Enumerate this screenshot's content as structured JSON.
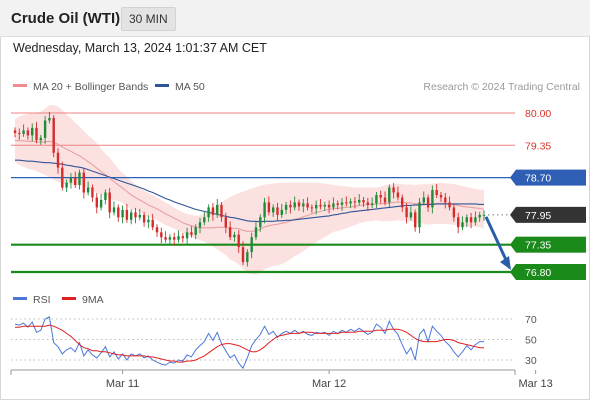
{
  "header": {
    "title": "Crude Oil (WTI)",
    "timeframe": "30 MIN"
  },
  "datetime": "Wednesday, March 13, 2024 1:01:37 AM CET",
  "credit": "Research © 2024 Trading Central",
  "colors": {
    "support": "#1a8a1a",
    "resistance": "#f08080",
    "pivot": "#2f5fb5",
    "current": "#333333",
    "rsi": "#4a78d8",
    "rsi_ma": "#e02020",
    "arrow": "#2a5fa8"
  },
  "chart_data": [
    {
      "type": "candlestick",
      "ylim": [
        76.6,
        80.35
      ],
      "legend": [
        {
          "label": "MA 20 + Bollinger Bands",
          "color": "#f08c8c"
        },
        {
          "label": "MA 50",
          "color": "#2f5597"
        }
      ],
      "x_ticks": [
        {
          "label": "Mar 11",
          "index": 25
        },
        {
          "label": "Mar 12",
          "index": 73
        },
        {
          "label": "Mar 13",
          "index": 121
        }
      ],
      "levels": [
        {
          "value": 80.0,
          "label": "80.00",
          "kind": "resistance"
        },
        {
          "value": 79.35,
          "label": "79.35",
          "kind": "resistance"
        },
        {
          "value": 78.7,
          "label": "78.70",
          "kind": "pivot"
        },
        {
          "value": 77.95,
          "label": "77.95",
          "kind": "current"
        },
        {
          "value": 77.35,
          "label": "77.35",
          "kind": "support"
        },
        {
          "value": 76.8,
          "label": "76.80",
          "kind": "support"
        }
      ],
      "closes": [
        79.6,
        79.58,
        79.65,
        79.55,
        79.7,
        79.45,
        79.5,
        79.85,
        79.9,
        79.2,
        78.9,
        78.5,
        78.6,
        78.7,
        78.55,
        78.8,
        78.4,
        78.5,
        78.3,
        78.1,
        78.25,
        78.4,
        78.0,
        78.1,
        77.9,
        78.05,
        77.85,
        78.0,
        77.9,
        77.95,
        77.8,
        77.85,
        77.7,
        77.6,
        77.5,
        77.45,
        77.5,
        77.45,
        77.52,
        77.48,
        77.6,
        77.55,
        77.7,
        77.8,
        77.9,
        78.1,
        77.95,
        78.15,
        77.9,
        77.7,
        77.5,
        77.55,
        77.3,
        77.0,
        77.2,
        77.5,
        77.7,
        77.9,
        78.2,
        78.0,
        78.1,
        77.95,
        78.05,
        78.15,
        78.1,
        78.2,
        78.12,
        78.18,
        78.1,
        78.08,
        78.15,
        78.12,
        78.15,
        78.1,
        78.18,
        78.15,
        78.2,
        78.18,
        78.22,
        78.2,
        78.25,
        78.2,
        78.15,
        78.18,
        78.35,
        78.3,
        78.2,
        78.5,
        78.4,
        78.3,
        78.1,
        77.9,
        78.0,
        77.7,
        78.2,
        78.3,
        78.1,
        78.45,
        78.35,
        78.3,
        78.2,
        78.1,
        77.9,
        77.7,
        77.8,
        77.9,
        77.8,
        77.9,
        77.95,
        77.95
      ],
      "ma20": [
        79.45,
        79.44,
        79.44,
        79.43,
        79.43,
        79.42,
        79.41,
        79.42,
        79.43,
        79.41,
        79.37,
        79.32,
        79.27,
        79.23,
        79.18,
        79.14,
        79.08,
        79.02,
        78.96,
        78.89,
        78.82,
        78.76,
        78.68,
        78.62,
        78.55,
        78.49,
        78.42,
        78.35,
        78.3,
        78.25,
        78.2,
        78.15,
        78.11,
        78.07,
        78.02,
        77.97,
        77.93,
        77.88,
        77.84,
        77.79,
        77.76,
        77.73,
        77.7,
        77.69,
        77.69,
        77.69,
        77.69,
        77.7,
        77.7,
        77.7,
        77.68,
        77.68,
        77.67,
        77.64,
        77.62,
        77.62,
        77.63,
        77.66,
        77.71,
        77.73,
        77.75,
        77.76,
        77.78,
        77.8,
        77.83,
        77.86,
        77.88,
        77.91,
        77.94,
        77.97,
        78.0,
        78.02,
        78.04,
        78.06,
        78.08,
        78.08,
        78.09,
        78.1,
        78.11,
        78.12,
        78.14,
        78.15,
        78.16,
        78.16,
        78.17,
        78.17,
        78.18,
        78.19,
        78.2,
        78.21,
        78.2,
        78.19,
        78.19,
        78.17,
        78.17,
        78.17,
        78.16,
        78.17,
        78.18,
        78.18,
        78.18,
        78.17,
        78.16,
        78.14,
        78.12,
        78.11,
        78.1,
        78.09,
        78.08,
        78.06
      ],
      "ma50": [
        79.05,
        79.05,
        79.04,
        79.03,
        79.03,
        79.02,
        79.01,
        79.0,
        79.0,
        78.99,
        78.98,
        78.97,
        78.95,
        78.94,
        78.92,
        78.91,
        78.89,
        78.86,
        78.83,
        78.8,
        78.77,
        78.74,
        78.71,
        78.68,
        78.65,
        78.62,
        78.59,
        78.56,
        78.53,
        78.5,
        78.47,
        78.43,
        78.4,
        78.36,
        78.32,
        78.28,
        78.25,
        78.21,
        78.18,
        78.15,
        78.12,
        78.09,
        78.06,
        78.04,
        78.02,
        78.0,
        77.98,
        77.96,
        77.94,
        77.92,
        77.9,
        77.89,
        77.87,
        77.85,
        77.83,
        77.82,
        77.82,
        77.81,
        77.82,
        77.82,
        77.82,
        77.83,
        77.83,
        77.84,
        77.84,
        77.85,
        77.86,
        77.87,
        77.88,
        77.89,
        77.9,
        77.91,
        77.92,
        77.93,
        77.95,
        77.96,
        77.98,
        77.99,
        78.01,
        78.02,
        78.03,
        78.04,
        78.05,
        78.06,
        78.07,
        78.08,
        78.09,
        78.1,
        78.11,
        78.12,
        78.13,
        78.14,
        78.14,
        78.15,
        78.15,
        78.16,
        78.16,
        78.16,
        78.17,
        78.17,
        78.17,
        78.17,
        78.17,
        78.17,
        78.17,
        78.17,
        78.17,
        78.17,
        78.16,
        78.16
      ],
      "bb_upper": [
        79.88,
        79.93,
        79.96,
        79.98,
        80.0,
        80.01,
        80.03,
        80.09,
        80.16,
        80.16,
        80.13,
        80.06,
        79.97,
        79.9,
        79.8,
        79.73,
        79.64,
        79.55,
        79.48,
        79.39,
        79.28,
        79.18,
        79.1,
        78.99,
        78.88,
        78.79,
        78.72,
        78.64,
        78.56,
        78.49,
        78.44,
        78.39,
        78.35,
        78.3,
        78.25,
        78.2,
        78.15,
        78.09,
        78.04,
        78.0,
        77.97,
        77.95,
        77.93,
        77.94,
        77.97,
        78.02,
        78.07,
        78.14,
        78.2,
        78.26,
        78.31,
        78.35,
        78.39,
        78.42,
        78.45,
        78.48,
        78.51,
        78.54,
        78.56,
        78.57,
        78.58,
        78.59,
        78.6,
        78.6,
        78.6,
        78.6,
        78.6,
        78.6,
        78.6,
        78.6,
        78.6,
        78.59,
        78.58,
        78.57,
        78.55,
        78.54,
        78.53,
        78.52,
        78.51,
        78.5,
        78.5,
        78.5,
        78.5,
        78.5,
        78.5,
        78.52,
        78.54,
        78.56,
        78.57,
        78.58,
        78.57,
        78.56,
        78.56,
        78.55,
        78.56,
        78.57,
        78.57,
        78.58,
        78.59,
        78.6,
        78.59,
        78.58,
        78.57,
        78.55,
        78.53,
        78.51,
        78.49,
        78.47,
        78.46,
        78.45
      ],
      "bb_lower": [
        79.02,
        78.95,
        78.92,
        78.88,
        78.86,
        78.83,
        78.79,
        78.75,
        78.7,
        78.66,
        78.61,
        78.58,
        78.57,
        78.56,
        78.56,
        78.55,
        78.52,
        78.49,
        78.44,
        78.39,
        78.36,
        78.34,
        78.26,
        78.25,
        78.22,
        78.19,
        78.12,
        78.06,
        78.04,
        78.01,
        77.96,
        77.91,
        77.87,
        77.84,
        77.79,
        77.74,
        77.71,
        77.67,
        77.64,
        77.58,
        77.55,
        77.51,
        77.47,
        77.44,
        77.41,
        77.36,
        77.31,
        77.26,
        77.2,
        77.14,
        77.05,
        77.01,
        76.95,
        76.86,
        76.79,
        76.76,
        76.75,
        76.78,
        76.86,
        76.89,
        76.92,
        76.93,
        76.96,
        77.0,
        77.06,
        77.12,
        77.16,
        77.22,
        77.28,
        77.34,
        77.4,
        77.45,
        77.5,
        77.55,
        77.61,
        77.62,
        77.65,
        77.68,
        77.71,
        77.74,
        77.78,
        77.8,
        77.82,
        77.82,
        77.84,
        77.82,
        77.82,
        77.82,
        77.83,
        77.84,
        77.83,
        77.82,
        77.82,
        77.79,
        77.78,
        77.77,
        77.75,
        77.76,
        77.77,
        77.76,
        77.77,
        77.76,
        77.75,
        77.73,
        77.71,
        77.71,
        77.71,
        77.71,
        77.7,
        77.67
      ]
    },
    {
      "type": "line",
      "ylim": [
        20,
        80
      ],
      "legend": [
        {
          "label": "RSI",
          "color": "#4a78d8"
        },
        {
          "label": "9MA",
          "color": "#e02020"
        }
      ],
      "y_ticks": [
        70,
        50,
        30
      ],
      "series": [
        {
          "name": "RSI",
          "values": [
            65,
            64,
            66,
            62,
            67,
            57,
            59,
            70,
            72,
            47,
            43,
            36,
            40,
            42,
            38,
            47,
            34,
            40,
            35,
            32,
            37,
            43,
            33,
            38,
            31,
            36,
            30,
            36,
            34,
            36,
            32,
            34,
            30,
            28,
            26,
            25,
            28,
            27,
            30,
            29,
            35,
            33,
            40,
            44,
            48,
            56,
            49,
            57,
            46,
            39,
            32,
            35,
            27,
            22,
            32,
            44,
            50,
            55,
            63,
            55,
            58,
            52,
            56,
            58,
            56,
            59,
            56,
            58,
            55,
            54,
            57,
            56,
            57,
            54,
            58,
            56,
            59,
            57,
            60,
            58,
            61,
            58,
            55,
            57,
            65,
            62,
            56,
            68,
            60,
            55,
            45,
            36,
            42,
            30,
            55,
            60,
            48,
            63,
            58,
            54,
            48,
            44,
            38,
            33,
            38,
            44,
            40,
            45,
            48,
            48
          ]
        },
        {
          "name": "9MA",
          "values": [
            62,
            62,
            63,
            63,
            63,
            63,
            63,
            63,
            64,
            63,
            61,
            59,
            56,
            53,
            49,
            45,
            42,
            41,
            39,
            39,
            38,
            38,
            37,
            36,
            35,
            35,
            34,
            34,
            34,
            34,
            34,
            33,
            33,
            32,
            31,
            30,
            29,
            29,
            28,
            28,
            29,
            29,
            30,
            32,
            34,
            37,
            40,
            43,
            45,
            46,
            46,
            45,
            44,
            42,
            40,
            38,
            38,
            40,
            43,
            47,
            50,
            53,
            54,
            55,
            56,
            56,
            56,
            57,
            57,
            57,
            56,
            56,
            56,
            56,
            56,
            56,
            57,
            57,
            57,
            57,
            58,
            58,
            58,
            58,
            59,
            59,
            59,
            60,
            60,
            60,
            59,
            57,
            54,
            51,
            49,
            48,
            48,
            48,
            48,
            49,
            50,
            50,
            49,
            47,
            46,
            45,
            44,
            43,
            42,
            42
          ]
        }
      ]
    }
  ]
}
